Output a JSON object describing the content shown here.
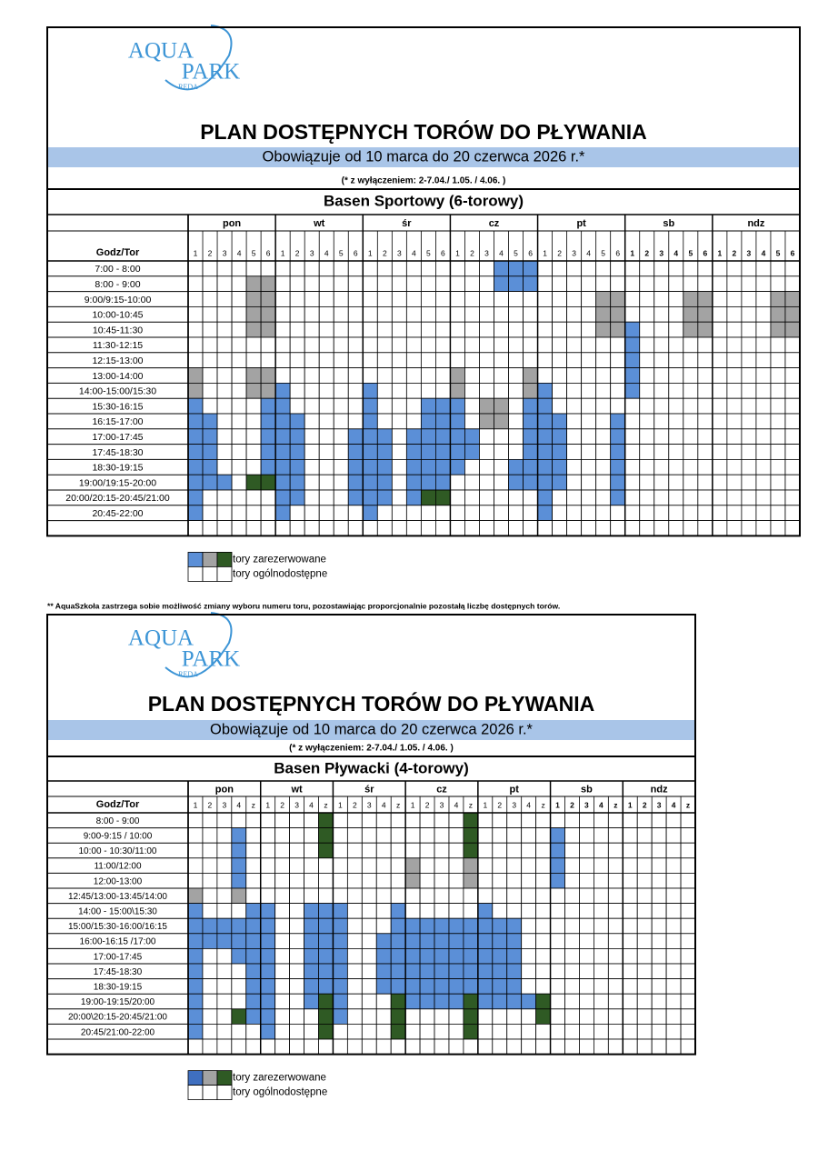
{
  "top": {
    "logo": {
      "line1": "AQUA",
      "line2": "PARK",
      "line3": "REDA"
    },
    "title": "PLAN DOSTĘPNYCH TORÓW DO PŁYWANIA",
    "subtitle": "Obowiązuje od 10 marca do 20 czerwca 2026 r.*",
    "note": "(* z wyłączeniem:  2-7.04./ 1.05. / 4.06. )",
    "pool": "Basen Sportowy (6-torowy)",
    "days": [
      "pon",
      "wt",
      "śr",
      "cz",
      "pt",
      "sb",
      "ndz"
    ],
    "corner": "Godz/Tor",
    "lanes": [
      "1",
      "2",
      "3",
      "4",
      "5",
      "6"
    ],
    "times": [
      "7:00 - 8:00",
      "8:00 - 9:00",
      "9:00/9:15-10:00",
      "10:00-10:45",
      "10:45-11:30",
      "11:30-12:15",
      "12:15-13:00",
      "13:00-14:00",
      "14:00-15:00/15:30",
      "15:30-16:15",
      "16:15-17:00",
      "17:00-17:45",
      "17:45-18:30",
      "18:30-19:15",
      "19:00/19:15-20:00",
      "20:00/20:15-20:45/21:00",
      "20:45-22:00"
    ],
    "legend": [
      "tory zarezerwowane",
      "tory ogólnodostępne"
    ]
  },
  "footnote": "** AquaSzkoła zastrzega sobie możliwość zmiany wyboru numeru toru, pozostawiając proporcjonalnie pozostałą liczbę dostępnych torów.",
  "bottom": {
    "logo": {
      "line1": "AQUA",
      "line2": "PARK",
      "line3": "REDA"
    },
    "title": "PLAN DOSTĘPNYCH TORÓW DO PŁYWANIA",
    "subtitle": "Obowiązuje od 10 marca do 20 czerwca 2026 r.*",
    "note": "(* z wyłączeniem:  2-7.04./ 1.05. / 4.06. )",
    "pool": "Basen Pływacki (4-torowy)",
    "days": [
      "pon",
      "wt",
      "śr",
      "cz",
      "pt",
      "sb",
      "ndz"
    ],
    "corner": "Godz/Tor",
    "lanes": [
      "1",
      "2",
      "3",
      "4",
      "z"
    ],
    "times": [
      "8:00 - 9:00",
      "9:00-9:15 / 10:00",
      "10:00 - 10:30/11:00",
      "11:00/12:00",
      "12:00-13:00",
      "12:45/13:00-13:45/14:00",
      "14:00 - 15:00\\15:30",
      "15:00/15:30-16:00/16:15",
      "16:00-16:15 /17:00",
      "17:00-17:45",
      "17:45-18:30",
      "18:30-19:15",
      "19:00-19:15/20:00",
      "20:00\\20:15-20:45/21:00",
      "20:45/21:00-22:00"
    ],
    "legend": [
      "tory zarezerwowane",
      "tory ogólnodostępne"
    ]
  }
}
